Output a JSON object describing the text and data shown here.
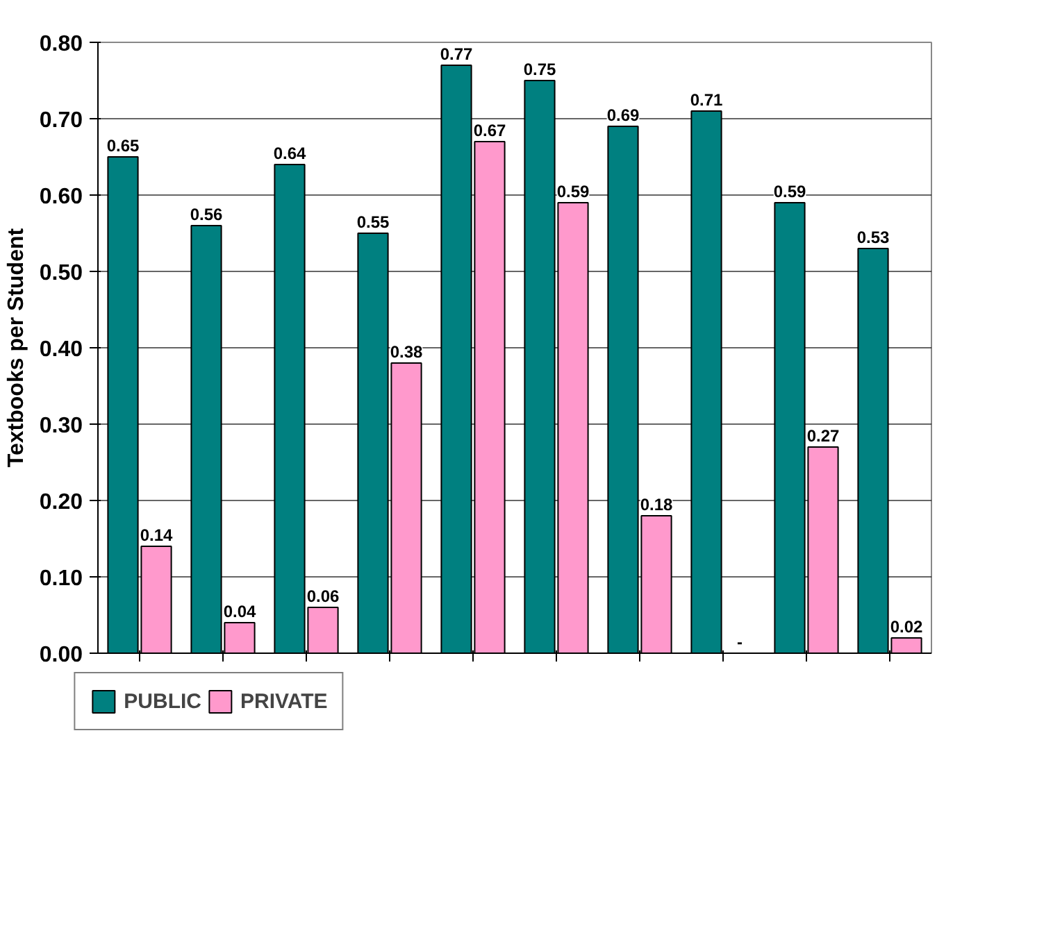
{
  "chart_data": {
    "type": "bar",
    "ylabel": "Textbooks per Student",
    "categories": [
      null,
      null,
      null,
      null,
      null,
      null,
      null,
      null,
      null,
      null
    ],
    "series": [
      {
        "name": "PUBLIC",
        "color": "#008080",
        "values": [
          0.65,
          0.56,
          0.64,
          0.55,
          0.77,
          0.75,
          0.69,
          0.71,
          0.59,
          0.53
        ],
        "value_labels": [
          "0.65",
          "0.56",
          "0.64",
          "0.55",
          "0.77",
          "0.75",
          "0.69",
          "0.71",
          "0.59",
          "0.53"
        ]
      },
      {
        "name": "PRIVATE",
        "color": "#ff99cc",
        "values": [
          0.14,
          0.04,
          0.06,
          0.38,
          0.67,
          0.59,
          0.18,
          null,
          0.27,
          0.02
        ],
        "value_labels": [
          "0.14",
          "0.04",
          "0.06",
          "0.38",
          "0.67",
          "0.59",
          "0.18",
          "-",
          "0.27",
          "0.02"
        ]
      }
    ],
    "ylim": [
      0,
      0.8
    ],
    "yticks": [
      {
        "value": 0,
        "label": "0.00"
      },
      {
        "value": 0.1,
        "label": "0.10"
      },
      {
        "value": 0.2,
        "label": "0.20"
      },
      {
        "value": 0.3,
        "label": "0.30"
      },
      {
        "value": 0.4,
        "label": "0.40"
      },
      {
        "value": 0.5,
        "label": "0.50"
      },
      {
        "value": 0.6,
        "label": "0.60"
      },
      {
        "value": 0.7,
        "label": "0.70"
      },
      {
        "value": 0.8,
        "label": "0.80"
      }
    ],
    "grid": "y",
    "legend": "bottom",
    "tick_labels": "y"
  }
}
